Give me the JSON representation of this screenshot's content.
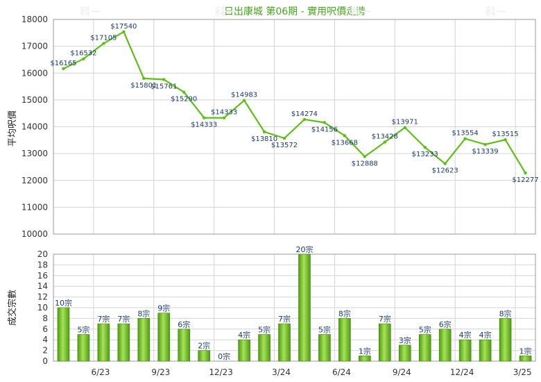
{
  "chart_data": [
    {
      "type": "line",
      "title": "日出康城 第06期 - 實用呎價走勢",
      "ylabel": "平均呎價",
      "ylim": [
        10000,
        18000
      ],
      "yticks": [
        10000,
        11000,
        12000,
        13000,
        14000,
        15000,
        16000,
        17000,
        18000
      ],
      "x_tick_labels": [
        "6/23",
        "9/23",
        "12/23",
        "3/24",
        "6/24",
        "9/24",
        "12/24",
        "3/25"
      ],
      "grid": true,
      "series": [
        {
          "values": [
            16165,
            16532,
            17105,
            17540,
            15801,
            15761,
            15290,
            14333,
            14333,
            14983,
            13810,
            13572,
            14274,
            14156,
            13668,
            12888,
            13428,
            13971,
            13233,
            12623,
            13554,
            13339,
            13515,
            12277
          ],
          "labels": [
            "$16165",
            "$16532",
            "$17105",
            "$17540",
            "$15801",
            "$15761",
            "$15290",
            "$14333",
            "$14333",
            "$14983",
            "$13810",
            "$13572",
            "$14274",
            "$14156",
            "$13668",
            "$12888",
            "$13428",
            "$13971",
            "$13233",
            "$12623",
            "$13554",
            "$13339",
            "$13515",
            "$12277"
          ]
        }
      ],
      "color": "#5cbf14"
    },
    {
      "type": "bar",
      "ylabel": "成交宗數",
      "ylim": [
        0,
        20
      ],
      "yticks": [
        0,
        2,
        4,
        6,
        8,
        10,
        12,
        14,
        16,
        18,
        20
      ],
      "x_tick_labels": [
        "6/23",
        "9/23",
        "12/23",
        "3/24",
        "6/24",
        "9/24",
        "12/24",
        "3/25"
      ],
      "grid": true,
      "values": [
        10,
        5,
        7,
        7,
        8,
        9,
        6,
        2,
        0,
        4,
        5,
        7,
        20,
        5,
        8,
        1,
        7,
        3,
        5,
        6,
        4,
        4,
        8,
        1
      ],
      "labels": [
        "10宗",
        "5宗",
        "7宗",
        "7宗",
        "8宗",
        "9宗",
        "6宗",
        "2宗",
        "0宗",
        "4宗",
        "5宗",
        "7宗",
        "20宗",
        "5宗",
        "8宗",
        "1宗",
        "7宗",
        "3宗",
        "5宗",
        "6宗",
        "4宗",
        "4宗",
        "8宗",
        "1宗"
      ],
      "color": "#6cc522"
    }
  ],
  "watermark": "科一"
}
